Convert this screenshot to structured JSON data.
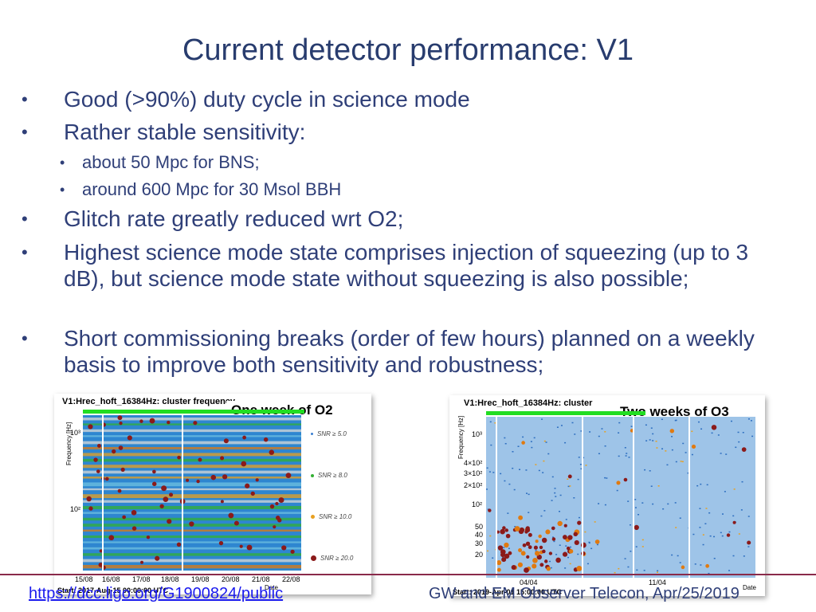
{
  "slide": {
    "title": "Current detector performance: V1",
    "bullets": [
      {
        "text": "Good (>90%) duty cycle in science mode"
      },
      {
        "text": "Rather stable sensitivity:"
      },
      {
        "text": "about 50 Mpc for BNS;"
      },
      {
        "text": "around 600 Mpc for 30 Msol BBH"
      },
      {
        "text": "Glitch rate greatly reduced wrt O2;"
      },
      {
        "text": "Highest science mode state comprises injection of squeezing (up to 3 dB), but science mode state without squeezing is also possible;"
      },
      {
        "text": "Short commissioning breaks (order of few hours) planned on a weekly basis to improve both sensitivity and robustness;"
      }
    ],
    "bullet_symbol": "•"
  },
  "plot_o2": {
    "title": "V1:Hrec_hoft_16384Hz: cluster frequency",
    "caption": "One week of O2",
    "ylabel": "Frequency [Hz]",
    "yticks": [
      "10³",
      "10²"
    ],
    "xticks": [
      "15/08",
      "16/08",
      "17/08",
      "18/08",
      "19/08",
      "20/08",
      "21/08",
      "22/08"
    ],
    "xlabel": "Date",
    "start": "Start: 2017-Aug-15 00:00:00 UTC",
    "legend": [
      "SNR ≥ 5.0",
      "SNR ≥ 8.0",
      "SNR ≥ 10.0",
      "SNR ≥ 20.0"
    ],
    "legend_colors": [
      "#3a7fd0",
      "#33b033",
      "#e8a020",
      "#8b1a1a"
    ]
  },
  "plot_o3": {
    "title": "V1:Hrec_hoft_16384Hz: cluster",
    "caption": "Two weeks of O3",
    "ylabel": "Frequency [Hz]",
    "yticks": [
      "10³",
      "4×10²",
      "3×10²",
      "2×10²",
      "10²",
      "50",
      "40",
      "30",
      "20"
    ],
    "xticks": [
      "04/04",
      "11/04"
    ],
    "xlabel": "Date",
    "start": "Start: 2019-Apr-01 15:00:00 UTC"
  },
  "footer": {
    "link": "https://dcc.ligo.org/G1900824/public",
    "right": "GW and EM Observer Telecon, Apr/25/2019"
  },
  "colors": {
    "title": "#283c6e",
    "text": "#2f3f78",
    "footer_line": "#8a2a4a",
    "link": "#1a1aee",
    "green_bar": "#22dd22"
  }
}
